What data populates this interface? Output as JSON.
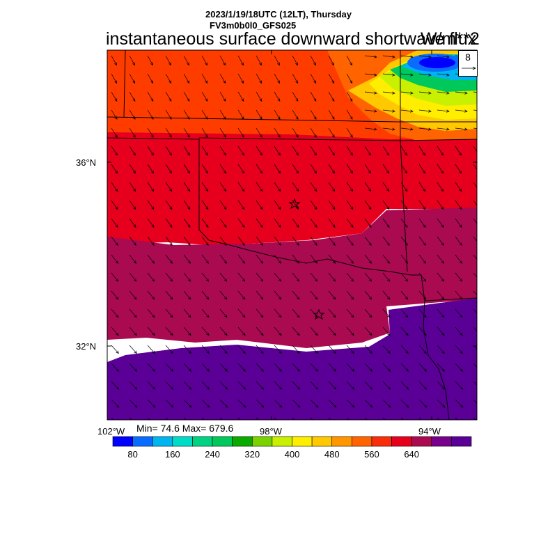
{
  "header": {
    "datetime": "2023/1/19/18UTC (12LT), Thursday",
    "model": "FV3m0b0l0_GFS025",
    "variable": "instantaneous surface downward shortwave flux",
    "units": "W/m**2"
  },
  "map": {
    "lat_labels": [
      "36°N",
      "32°N"
    ],
    "lon_labels": [
      "102°W",
      "98°W",
      "94°W"
    ],
    "stats": "Min= 74.6 Max= 679.6",
    "ref_vector_label": "8",
    "markers": [
      "star",
      "star"
    ]
  },
  "colorbar": {
    "colors": [
      "#0000ff",
      "#0a6cff",
      "#00b4f0",
      "#00dcc8",
      "#00d282",
      "#00c85a",
      "#0aaa00",
      "#7ad200",
      "#c8f000",
      "#ffee00",
      "#ffc800",
      "#ff9600",
      "#ff6400",
      "#fa2d0a",
      "#e6001e",
      "#aa0a50",
      "#78008c",
      "#5a0096"
    ],
    "tick_labels": [
      "80",
      "160",
      "240",
      "320",
      "400",
      "480",
      "560",
      "640"
    ]
  }
}
